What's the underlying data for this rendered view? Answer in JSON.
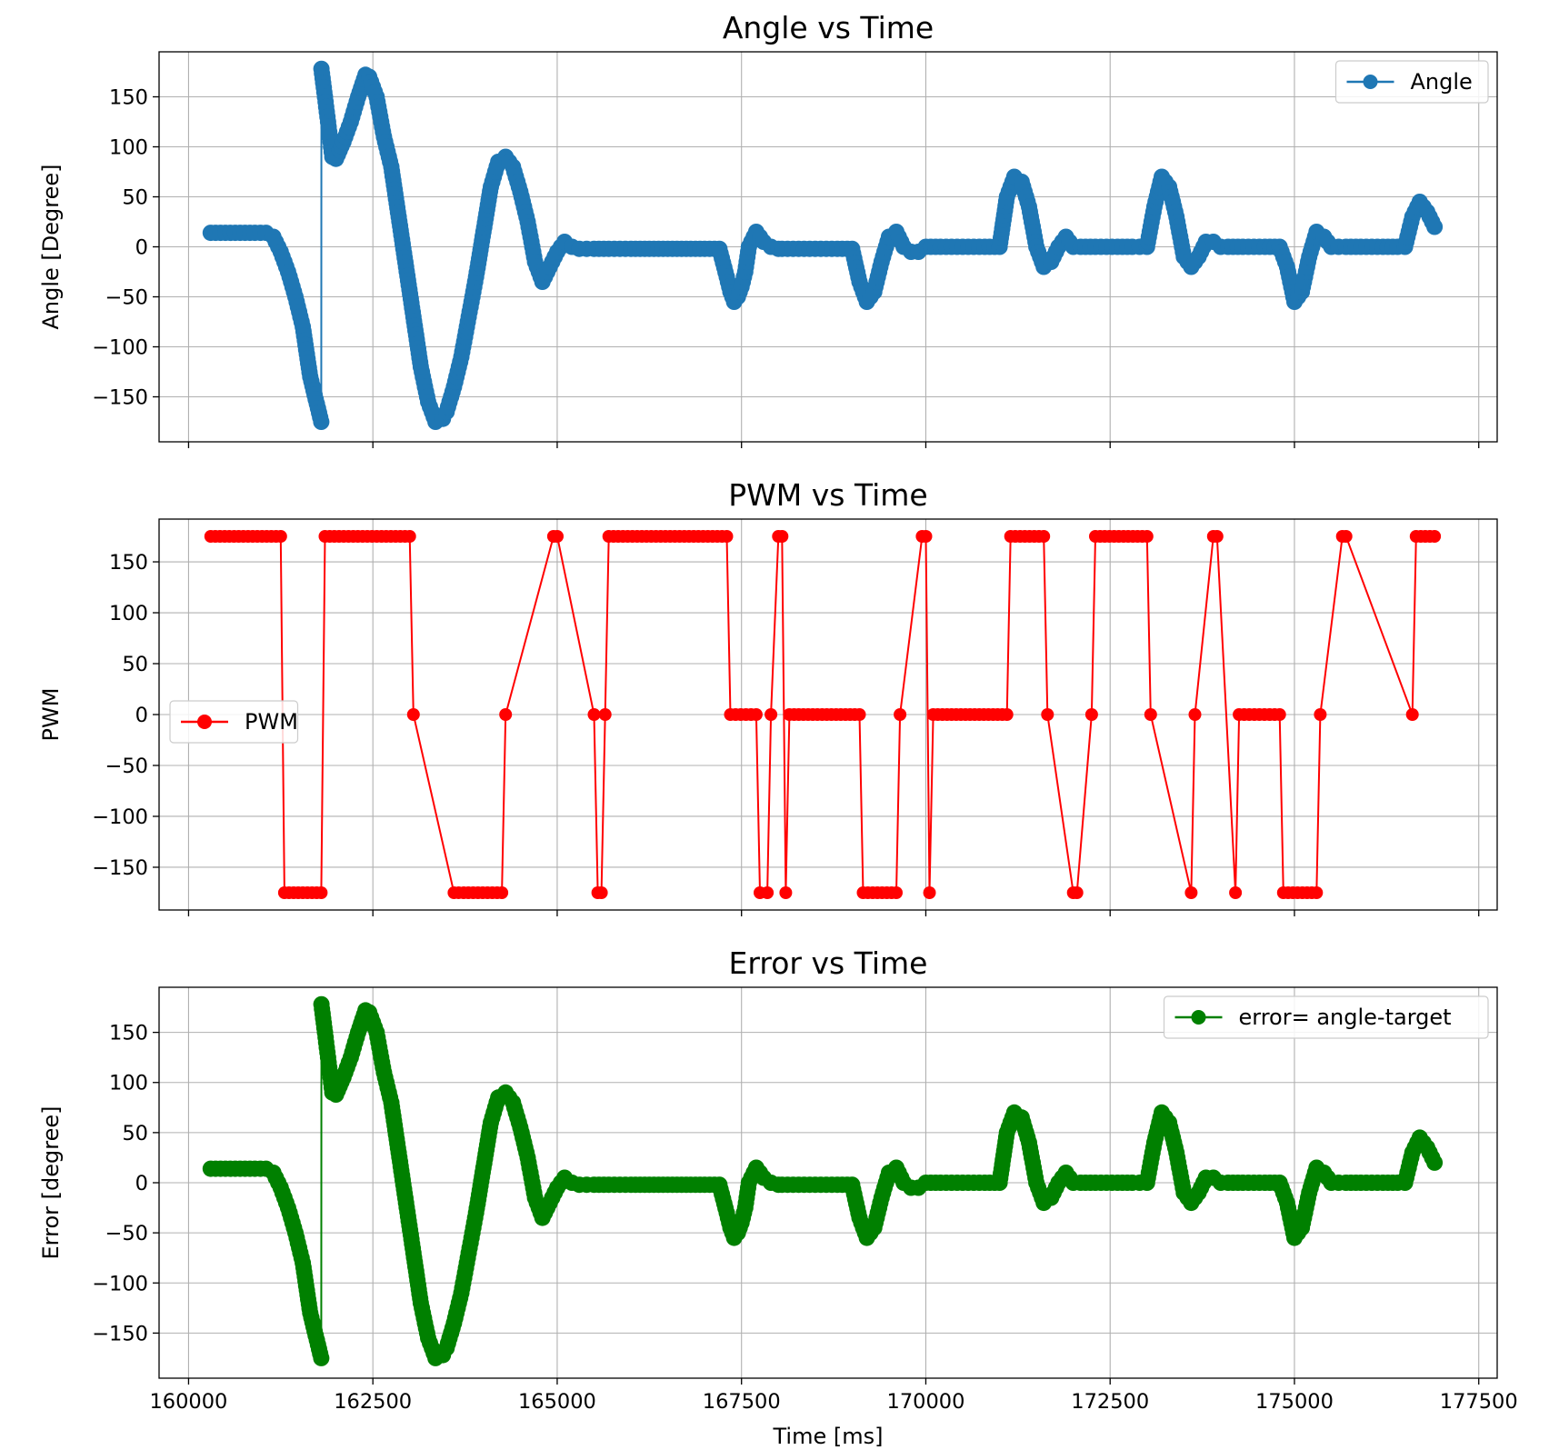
{
  "chart_data": [
    {
      "type": "line",
      "title": "Angle vs Time",
      "xlabel": "",
      "ylabel": "Angle [Degree]",
      "xlim": [
        159600,
        177750
      ],
      "ylim": [
        -195,
        195
      ],
      "xticks": [
        160000,
        162500,
        165000,
        167500,
        170000,
        172500,
        175000,
        177500
      ],
      "yticks": [
        -150,
        -100,
        -50,
        0,
        50,
        100,
        150
      ],
      "xtick_labels_shown": false,
      "grid": true,
      "legend_position": "upper-right",
      "series": [
        {
          "name": "Angle",
          "color": "#1f77b4",
          "marker": "circle",
          "markersize": "large",
          "x": [
            160300,
            160500,
            160700,
            160900,
            161050,
            161150,
            161250,
            161350,
            161450,
            161550,
            161650,
            161800,
            161802,
            161850,
            161900,
            161950,
            162000,
            162100,
            162200,
            162300,
            162400,
            162450,
            162550,
            162650,
            162750,
            162850,
            162950,
            163050,
            163150,
            163250,
            163350,
            163450,
            163500,
            163600,
            163700,
            163800,
            163900,
            164000,
            164100,
            164200,
            164300,
            164400,
            164500,
            164600,
            164700,
            164800,
            164900,
            165000,
            165100,
            165200,
            165300,
            165400,
            165500,
            165700,
            166000,
            166500,
            167000,
            167200,
            167300,
            167350,
            167400,
            167450,
            167500,
            167550,
            167600,
            167700,
            167750,
            167800,
            167900,
            168000,
            168050,
            168200,
            168500,
            168800,
            169000,
            169100,
            169200,
            169300,
            169400,
            169500,
            169600,
            169700,
            169800,
            169900,
            170000,
            170200,
            170500,
            170800,
            171000,
            171100,
            171200,
            171300,
            171400,
            171500,
            171600,
            171700,
            171800,
            171900,
            172000,
            172100,
            172300,
            172600,
            172800,
            172900,
            173000,
            173100,
            173200,
            173300,
            173400,
            173500,
            173600,
            173700,
            173800,
            173900,
            174000,
            174100,
            174300,
            174600,
            174800,
            174900,
            175000,
            175100,
            175200,
            175300,
            175400,
            175500,
            175600,
            175700,
            175900,
            176200,
            176400,
            176500,
            176600,
            176700,
            176800,
            176900
          ],
          "y": [
            14,
            14,
            14,
            14,
            14,
            10,
            -5,
            -25,
            -50,
            -80,
            -130,
            -175,
            178,
            150,
            120,
            90,
            88,
            105,
            125,
            150,
            172,
            170,
            150,
            110,
            80,
            30,
            -20,
            -70,
            -120,
            -155,
            -175,
            -172,
            -165,
            -140,
            -110,
            -70,
            -30,
            15,
            60,
            85,
            90,
            80,
            55,
            25,
            -15,
            -35,
            -20,
            -5,
            5,
            0,
            -2,
            -2,
            -2,
            -2,
            -2,
            -2,
            -2,
            -2,
            -30,
            -45,
            -55,
            -50,
            -40,
            -25,
            0,
            15,
            10,
            5,
            0,
            -2,
            -2,
            -2,
            -2,
            -2,
            -2,
            -35,
            -55,
            -45,
            -15,
            10,
            15,
            0,
            -5,
            -5,
            0,
            0,
            0,
            0,
            0,
            50,
            70,
            65,
            40,
            0,
            -20,
            -15,
            0,
            10,
            0,
            0,
            0,
            0,
            0,
            0,
            0,
            40,
            70,
            60,
            30,
            -10,
            -20,
            -10,
            5,
            5,
            0,
            0,
            0,
            0,
            0,
            -20,
            -55,
            -45,
            -10,
            15,
            10,
            0,
            0,
            0,
            0,
            0,
            0,
            0,
            30,
            45,
            35,
            20
          ]
        }
      ]
    },
    {
      "type": "line",
      "title": "PWM vs Time",
      "xlabel": "",
      "ylabel": "PWM",
      "xlim": [
        159600,
        177750
      ],
      "ylim": [
        -192,
        192
      ],
      "xticks": [
        160000,
        162500,
        165000,
        167500,
        170000,
        172500,
        175000,
        177500
      ],
      "yticks": [
        -150,
        -100,
        -50,
        0,
        50,
        100,
        150
      ],
      "xtick_labels_shown": false,
      "grid": true,
      "legend_position": "center-left",
      "series": [
        {
          "name": "PWM",
          "color": "#ff0000",
          "marker": "circle",
          "markersize": "medium",
          "x": [
            160300,
            161250,
            161300,
            161800,
            161850,
            163000,
            163050,
            163600,
            164250,
            164300,
            164950,
            165000,
            165500,
            165550,
            165600,
            165650,
            165700,
            167300,
            167350,
            167700,
            167750,
            167850,
            167900,
            168000,
            168050,
            168100,
            168150,
            169100,
            169150,
            169600,
            169650,
            169950,
            170000,
            170050,
            170100,
            171100,
            171150,
            171600,
            171650,
            172000,
            172050,
            172250,
            172300,
            173000,
            173050,
            173600,
            173650,
            173900,
            173950,
            174200,
            174250,
            174800,
            174850,
            175300,
            175350,
            175650,
            175700,
            176600,
            176650,
            176900
          ],
          "y": [
            175,
            175,
            -175,
            -175,
            175,
            175,
            0,
            -175,
            -175,
            0,
            175,
            175,
            0,
            -175,
            -175,
            0,
            175,
            175,
            0,
            0,
            -175,
            -175,
            0,
            175,
            175,
            -175,
            0,
            0,
            -175,
            -175,
            0,
            175,
            175,
            -175,
            0,
            0,
            175,
            175,
            0,
            -175,
            -175,
            0,
            175,
            175,
            0,
            -175,
            0,
            175,
            175,
            -175,
            0,
            0,
            -175,
            -175,
            0,
            175,
            175,
            0,
            175,
            175
          ]
        }
      ]
    },
    {
      "type": "line",
      "title": "Error vs Time",
      "xlabel": "Time [ms]",
      "ylabel": "Error [degree]",
      "xlim": [
        159600,
        177750
      ],
      "ylim": [
        -195,
        195
      ],
      "xticks": [
        160000,
        162500,
        165000,
        167500,
        170000,
        172500,
        175000,
        177500
      ],
      "yticks": [
        -150,
        -100,
        -50,
        0,
        50,
        100,
        150
      ],
      "xtick_labels_shown": true,
      "grid": true,
      "legend_position": "upper-right",
      "series": [
        {
          "name": "error= angle-target",
          "color": "#008000",
          "marker": "circle",
          "markersize": "large",
          "x": [
            160300,
            160500,
            160700,
            160900,
            161050,
            161150,
            161250,
            161350,
            161450,
            161550,
            161650,
            161800,
            161802,
            161850,
            161900,
            161950,
            162000,
            162100,
            162200,
            162300,
            162400,
            162450,
            162550,
            162650,
            162750,
            162850,
            162950,
            163050,
            163150,
            163250,
            163350,
            163450,
            163500,
            163600,
            163700,
            163800,
            163900,
            164000,
            164100,
            164200,
            164300,
            164400,
            164500,
            164600,
            164700,
            164800,
            164900,
            165000,
            165100,
            165200,
            165300,
            165400,
            165500,
            165700,
            166000,
            166500,
            167000,
            167200,
            167300,
            167350,
            167400,
            167450,
            167500,
            167550,
            167600,
            167700,
            167750,
            167800,
            167900,
            168000,
            168050,
            168200,
            168500,
            168800,
            169000,
            169100,
            169200,
            169300,
            169400,
            169500,
            169600,
            169700,
            169800,
            169900,
            170000,
            170200,
            170500,
            170800,
            171000,
            171100,
            171200,
            171300,
            171400,
            171500,
            171600,
            171700,
            171800,
            171900,
            172000,
            172100,
            172300,
            172600,
            172800,
            172900,
            173000,
            173100,
            173200,
            173300,
            173400,
            173500,
            173600,
            173700,
            173800,
            173900,
            174000,
            174100,
            174300,
            174600,
            174800,
            174900,
            175000,
            175100,
            175200,
            175300,
            175400,
            175500,
            175600,
            175700,
            175900,
            176200,
            176400,
            176500,
            176600,
            176700,
            176800,
            176900
          ],
          "y": [
            14,
            14,
            14,
            14,
            14,
            10,
            -5,
            -25,
            -50,
            -80,
            -130,
            -175,
            178,
            150,
            120,
            90,
            88,
            105,
            125,
            150,
            172,
            170,
            150,
            110,
            80,
            30,
            -20,
            -70,
            -120,
            -155,
            -175,
            -172,
            -165,
            -140,
            -110,
            -70,
            -30,
            15,
            60,
            85,
            90,
            80,
            55,
            25,
            -15,
            -35,
            -20,
            -5,
            5,
            0,
            -2,
            -2,
            -2,
            -2,
            -2,
            -2,
            -2,
            -2,
            -30,
            -45,
            -55,
            -50,
            -40,
            -25,
            0,
            15,
            10,
            5,
            0,
            -2,
            -2,
            -2,
            -2,
            -2,
            -2,
            -35,
            -55,
            -45,
            -15,
            10,
            15,
            0,
            -5,
            -5,
            0,
            0,
            0,
            0,
            0,
            50,
            70,
            65,
            40,
            0,
            -20,
            -15,
            0,
            10,
            0,
            0,
            0,
            0,
            0,
            0,
            0,
            40,
            70,
            60,
            30,
            -10,
            -20,
            -10,
            5,
            5,
            0,
            0,
            0,
            0,
            0,
            -20,
            -55,
            -45,
            -10,
            15,
            10,
            0,
            0,
            0,
            0,
            0,
            0,
            0,
            30,
            45,
            35,
            20
          ]
        }
      ]
    }
  ]
}
